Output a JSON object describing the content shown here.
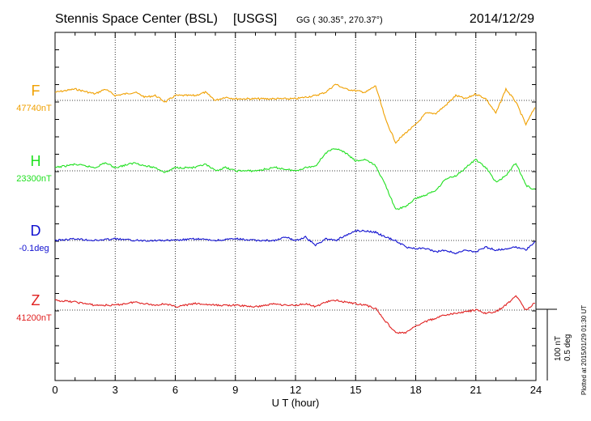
{
  "header": {
    "station": "Stennis Space Center (BSL)",
    "network": "[USGS]",
    "coords": "GG ( 30.35°, 270.37°)",
    "date": "2014/12/29"
  },
  "footer": {
    "plotted": "Plotted at 2015/01/29 01:30 UT",
    "scale_nt": "100 nT",
    "scale_deg": "0.5 deg"
  },
  "chart_data": {
    "type": "line",
    "title": "Stennis Space Center (BSL) [USGS] 2014/12/29",
    "xlabel": "U T (hour)",
    "xlim": [
      0,
      24
    ],
    "x_ticks": [
      "0",
      "3",
      "6",
      "9",
      "12",
      "15",
      "18",
      "21",
      "24"
    ],
    "grid": true,
    "scale": "100 nT / 0.5 deg per vertical division",
    "series": [
      {
        "name": "F",
        "baseline_label": "47740nT",
        "baseline": 47740,
        "unit": "nT",
        "color": "#f0a000",
        "points": [
          [
            0,
            -10
          ],
          [
            1,
            -14
          ],
          [
            2,
            -8
          ],
          [
            2.5,
            -14
          ],
          [
            3,
            -6
          ],
          [
            4,
            -10
          ],
          [
            4.5,
            -4
          ],
          [
            5,
            -6
          ],
          [
            5.5,
            2
          ],
          [
            6,
            -6
          ],
          [
            7,
            -6
          ],
          [
            7.5,
            -10
          ],
          [
            8,
            0
          ],
          [
            8.5,
            -4
          ],
          [
            9,
            -2
          ],
          [
            10,
            -2
          ],
          [
            11,
            -2
          ],
          [
            12,
            -2
          ],
          [
            12.5,
            -4
          ],
          [
            13,
            -6
          ],
          [
            13.5,
            -10
          ],
          [
            14,
            -20
          ],
          [
            14.5,
            -14
          ],
          [
            15,
            -12
          ],
          [
            15.5,
            -10
          ],
          [
            16,
            -18
          ],
          [
            16.5,
            24
          ],
          [
            17,
            52
          ],
          [
            17.5,
            40
          ],
          [
            18,
            30
          ],
          [
            18.5,
            16
          ],
          [
            19,
            16
          ],
          [
            19.5,
            6
          ],
          [
            20,
            -6
          ],
          [
            20.5,
            -2
          ],
          [
            21,
            -8
          ],
          [
            21.5,
            -2
          ],
          [
            22,
            16
          ],
          [
            22.5,
            -14
          ],
          [
            23,
            2
          ],
          [
            23.5,
            30
          ],
          [
            24,
            6
          ]
        ]
      },
      {
        "name": "H",
        "baseline_label": "23300nT",
        "baseline": 23300,
        "unit": "nT",
        "color": "#20e020",
        "points": [
          [
            0,
            -4
          ],
          [
            1,
            -8
          ],
          [
            2,
            -4
          ],
          [
            2.5,
            -10
          ],
          [
            3,
            -4
          ],
          [
            4,
            -10
          ],
          [
            4.5,
            -6
          ],
          [
            5,
            -4
          ],
          [
            5.5,
            2
          ],
          [
            6,
            -4
          ],
          [
            7,
            -4
          ],
          [
            7.5,
            -8
          ],
          [
            8,
            0
          ],
          [
            8.5,
            -4
          ],
          [
            9,
            0
          ],
          [
            10,
            0
          ],
          [
            11,
            -4
          ],
          [
            12,
            0
          ],
          [
            12.5,
            -4
          ],
          [
            13,
            -6
          ],
          [
            13.5,
            -22
          ],
          [
            14,
            -28
          ],
          [
            14.5,
            -22
          ],
          [
            15,
            -12
          ],
          [
            15.5,
            -14
          ],
          [
            16,
            -6
          ],
          [
            16.5,
            18
          ],
          [
            17,
            48
          ],
          [
            17.5,
            44
          ],
          [
            18,
            34
          ],
          [
            18.5,
            30
          ],
          [
            19,
            24
          ],
          [
            19.5,
            10
          ],
          [
            20,
            6
          ],
          [
            20.5,
            -4
          ],
          [
            21,
            -14
          ],
          [
            21.5,
            -4
          ],
          [
            22,
            14
          ],
          [
            22.5,
            6
          ],
          [
            23,
            -10
          ],
          [
            23.5,
            18
          ],
          [
            24,
            24
          ]
        ]
      },
      {
        "name": "D",
        "baseline_label": "-0.1deg",
        "baseline": -0.1,
        "unit": "deg",
        "color": "#1010d0",
        "points": [
          [
            0,
            0
          ],
          [
            1,
            -2
          ],
          [
            2,
            0
          ],
          [
            3,
            -2
          ],
          [
            4,
            0
          ],
          [
            5,
            0
          ],
          [
            6,
            0
          ],
          [
            7,
            -2
          ],
          [
            8,
            0
          ],
          [
            9,
            -2
          ],
          [
            10,
            0
          ],
          [
            11,
            0
          ],
          [
            11.5,
            -4
          ],
          [
            12,
            0
          ],
          [
            12.5,
            -4
          ],
          [
            13,
            6
          ],
          [
            13.5,
            -2
          ],
          [
            14,
            0
          ],
          [
            14.5,
            -6
          ],
          [
            15,
            -12
          ],
          [
            15.5,
            -12
          ],
          [
            16,
            -10
          ],
          [
            16.5,
            -4
          ],
          [
            17,
            0
          ],
          [
            17.5,
            8
          ],
          [
            18,
            10
          ],
          [
            18.5,
            10
          ],
          [
            19,
            14
          ],
          [
            19.5,
            12
          ],
          [
            20,
            16
          ],
          [
            20.5,
            12
          ],
          [
            21,
            14
          ],
          [
            21.5,
            8
          ],
          [
            22,
            12
          ],
          [
            22.5,
            10
          ],
          [
            23,
            8
          ],
          [
            23.5,
            12
          ],
          [
            24,
            0
          ]
        ]
      },
      {
        "name": "Z",
        "baseline_label": "41200nT",
        "baseline": 41200,
        "unit": "nT",
        "color": "#e02020",
        "points": [
          [
            0,
            -12
          ],
          [
            1,
            -10
          ],
          [
            2,
            -6
          ],
          [
            3,
            -6
          ],
          [
            4,
            -10
          ],
          [
            5,
            -6
          ],
          [
            5.5,
            -8
          ],
          [
            6,
            -4
          ],
          [
            7,
            -8
          ],
          [
            8,
            -6
          ],
          [
            9,
            -6
          ],
          [
            10,
            -4
          ],
          [
            11,
            -8
          ],
          [
            11.5,
            -6
          ],
          [
            12,
            -6
          ],
          [
            12.5,
            -8
          ],
          [
            13,
            -4
          ],
          [
            13.5,
            -10
          ],
          [
            14,
            -12
          ],
          [
            15,
            -8
          ],
          [
            15.5,
            -6
          ],
          [
            16,
            -2
          ],
          [
            16.5,
            14
          ],
          [
            17,
            28
          ],
          [
            17.5,
            28
          ],
          [
            18,
            20
          ],
          [
            18.5,
            14
          ],
          [
            19,
            10
          ],
          [
            19.5,
            6
          ],
          [
            20,
            4
          ],
          [
            20.5,
            2
          ],
          [
            21,
            0
          ],
          [
            21.5,
            4
          ],
          [
            22,
            2
          ],
          [
            22.5,
            -6
          ],
          [
            23,
            -18
          ],
          [
            23.5,
            0
          ],
          [
            24,
            -10
          ]
        ]
      }
    ]
  }
}
